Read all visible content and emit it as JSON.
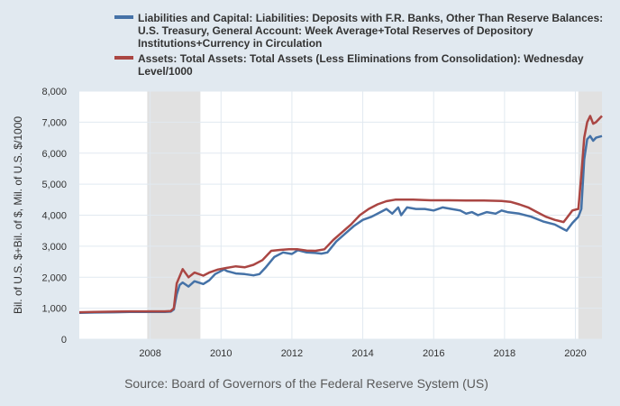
{
  "chart_data": {
    "type": "line",
    "title": "",
    "ylabel": "Bil. of U.S. $+Bil. of $, Mil. of U.S. $/1000",
    "xlabel": "",
    "source": "Source: Board of Governors of the Federal Reserve System (US)",
    "xlim": [
      "2006-01",
      "2020-10"
    ],
    "ylim": [
      0,
      8000
    ],
    "x_ticks": [
      "2008",
      "2010",
      "2012",
      "2014",
      "2016",
      "2018",
      "2020"
    ],
    "y_ticks": [
      "0",
      "1,000",
      "2,000",
      "3,000",
      "4,000",
      "5,000",
      "6,000",
      "7,000",
      "8,000"
    ],
    "grid": true,
    "legend_position": "top",
    "recessions": [
      {
        "start": "2007-12",
        "end": "2009-06"
      },
      {
        "start": "2020-02",
        "end": "2020-10"
      }
    ],
    "series": [
      {
        "name": "Liabilities and Capital: Liabilities: Deposits with F.R. Banks, Other Than Reserve Balances: U.S. Treasury, General Account: Week Average+Total Reserves of Depository Institutions+Currency in Circulation",
        "color": "#4572a7",
        "points": [
          [
            "2006-01",
            850
          ],
          [
            "2006-06",
            860
          ],
          [
            "2007-01",
            870
          ],
          [
            "2007-06",
            880
          ],
          [
            "2008-01",
            880
          ],
          [
            "2008-06",
            880
          ],
          [
            "2008-08",
            890
          ],
          [
            "2008-09",
            960
          ],
          [
            "2008-10",
            1450
          ],
          [
            "2008-11",
            1750
          ],
          [
            "2008-12",
            1830
          ],
          [
            "2009-02",
            1700
          ],
          [
            "2009-04",
            1870
          ],
          [
            "2009-07",
            1780
          ],
          [
            "2009-09",
            1900
          ],
          [
            "2009-11",
            2100
          ],
          [
            "2010-02",
            2250
          ],
          [
            "2010-03",
            2200
          ],
          [
            "2010-06",
            2120
          ],
          [
            "2010-09",
            2100
          ],
          [
            "2010-12",
            2060
          ],
          [
            "2011-02",
            2100
          ],
          [
            "2011-04",
            2300
          ],
          [
            "2011-07",
            2650
          ],
          [
            "2011-10",
            2800
          ],
          [
            "2012-01",
            2750
          ],
          [
            "2012-03",
            2870
          ],
          [
            "2012-06",
            2800
          ],
          [
            "2012-09",
            2780
          ],
          [
            "2012-11",
            2760
          ],
          [
            "2013-01",
            2800
          ],
          [
            "2013-04",
            3150
          ],
          [
            "2013-07",
            3400
          ],
          [
            "2013-10",
            3650
          ],
          [
            "2014-01",
            3850
          ],
          [
            "2014-04",
            3950
          ],
          [
            "2014-07",
            4100
          ],
          [
            "2014-09",
            4200
          ],
          [
            "2014-11",
            4050
          ],
          [
            "2015-01",
            4250
          ],
          [
            "2015-02",
            4000
          ],
          [
            "2015-04",
            4250
          ],
          [
            "2015-07",
            4200
          ],
          [
            "2015-10",
            4200
          ],
          [
            "2016-01",
            4150
          ],
          [
            "2016-04",
            4250
          ],
          [
            "2016-07",
            4200
          ],
          [
            "2016-10",
            4150
          ],
          [
            "2016-12",
            4050
          ],
          [
            "2017-02",
            4100
          ],
          [
            "2017-04",
            4000
          ],
          [
            "2017-07",
            4100
          ],
          [
            "2017-10",
            4050
          ],
          [
            "2017-12",
            4150
          ],
          [
            "2018-02",
            4100
          ],
          [
            "2018-06",
            4050
          ],
          [
            "2018-10",
            3950
          ],
          [
            "2019-02",
            3800
          ],
          [
            "2019-06",
            3700
          ],
          [
            "2019-09",
            3550
          ],
          [
            "2019-10",
            3500
          ],
          [
            "2019-12",
            3750
          ],
          [
            "2020-02",
            3950
          ],
          [
            "2020-03",
            4200
          ],
          [
            "2020-04",
            5800
          ],
          [
            "2020-05",
            6450
          ],
          [
            "2020-06",
            6550
          ],
          [
            "2020-07",
            6400
          ],
          [
            "2020-08",
            6500
          ],
          [
            "2020-10",
            6550
          ]
        ]
      },
      {
        "name": "Assets: Total Assets: Total Assets (Less Eliminations from Consolidation): Wednesday Level/1000",
        "color": "#aa4643",
        "points": [
          [
            "2006-01",
            870
          ],
          [
            "2006-06",
            880
          ],
          [
            "2007-01",
            890
          ],
          [
            "2007-06",
            900
          ],
          [
            "2008-01",
            900
          ],
          [
            "2008-06",
            900
          ],
          [
            "2008-08",
            910
          ],
          [
            "2008-09",
            1000
          ],
          [
            "2008-10",
            1800
          ],
          [
            "2008-12",
            2260
          ],
          [
            "2009-02",
            2000
          ],
          [
            "2009-04",
            2150
          ],
          [
            "2009-07",
            2050
          ],
          [
            "2009-09",
            2150
          ],
          [
            "2009-12",
            2250
          ],
          [
            "2010-03",
            2300
          ],
          [
            "2010-06",
            2350
          ],
          [
            "2010-09",
            2320
          ],
          [
            "2010-12",
            2400
          ],
          [
            "2011-03",
            2550
          ],
          [
            "2011-06",
            2850
          ],
          [
            "2011-09",
            2880
          ],
          [
            "2011-12",
            2900
          ],
          [
            "2012-03",
            2900
          ],
          [
            "2012-06",
            2860
          ],
          [
            "2012-09",
            2850
          ],
          [
            "2012-12",
            2900
          ],
          [
            "2013-03",
            3200
          ],
          [
            "2013-06",
            3450
          ],
          [
            "2013-09",
            3700
          ],
          [
            "2013-12",
            4000
          ],
          [
            "2014-03",
            4200
          ],
          [
            "2014-06",
            4350
          ],
          [
            "2014-09",
            4450
          ],
          [
            "2014-12",
            4500
          ],
          [
            "2015-06",
            4500
          ],
          [
            "2015-12",
            4480
          ],
          [
            "2016-06",
            4480
          ],
          [
            "2016-12",
            4470
          ],
          [
            "2017-06",
            4470
          ],
          [
            "2017-12",
            4460
          ],
          [
            "2018-03",
            4430
          ],
          [
            "2018-06",
            4350
          ],
          [
            "2018-09",
            4250
          ],
          [
            "2018-12",
            4100
          ],
          [
            "2019-03",
            3950
          ],
          [
            "2019-06",
            3850
          ],
          [
            "2019-09",
            3780
          ],
          [
            "2019-10",
            3900
          ],
          [
            "2019-12",
            4150
          ],
          [
            "2020-02",
            4200
          ],
          [
            "2020-03",
            5300
          ],
          [
            "2020-04",
            6500
          ],
          [
            "2020-05",
            7000
          ],
          [
            "2020-06",
            7200
          ],
          [
            "2020-07",
            6950
          ],
          [
            "2020-08",
            7000
          ],
          [
            "2020-09",
            7100
          ],
          [
            "2020-10",
            7200
          ]
        ]
      }
    ]
  }
}
